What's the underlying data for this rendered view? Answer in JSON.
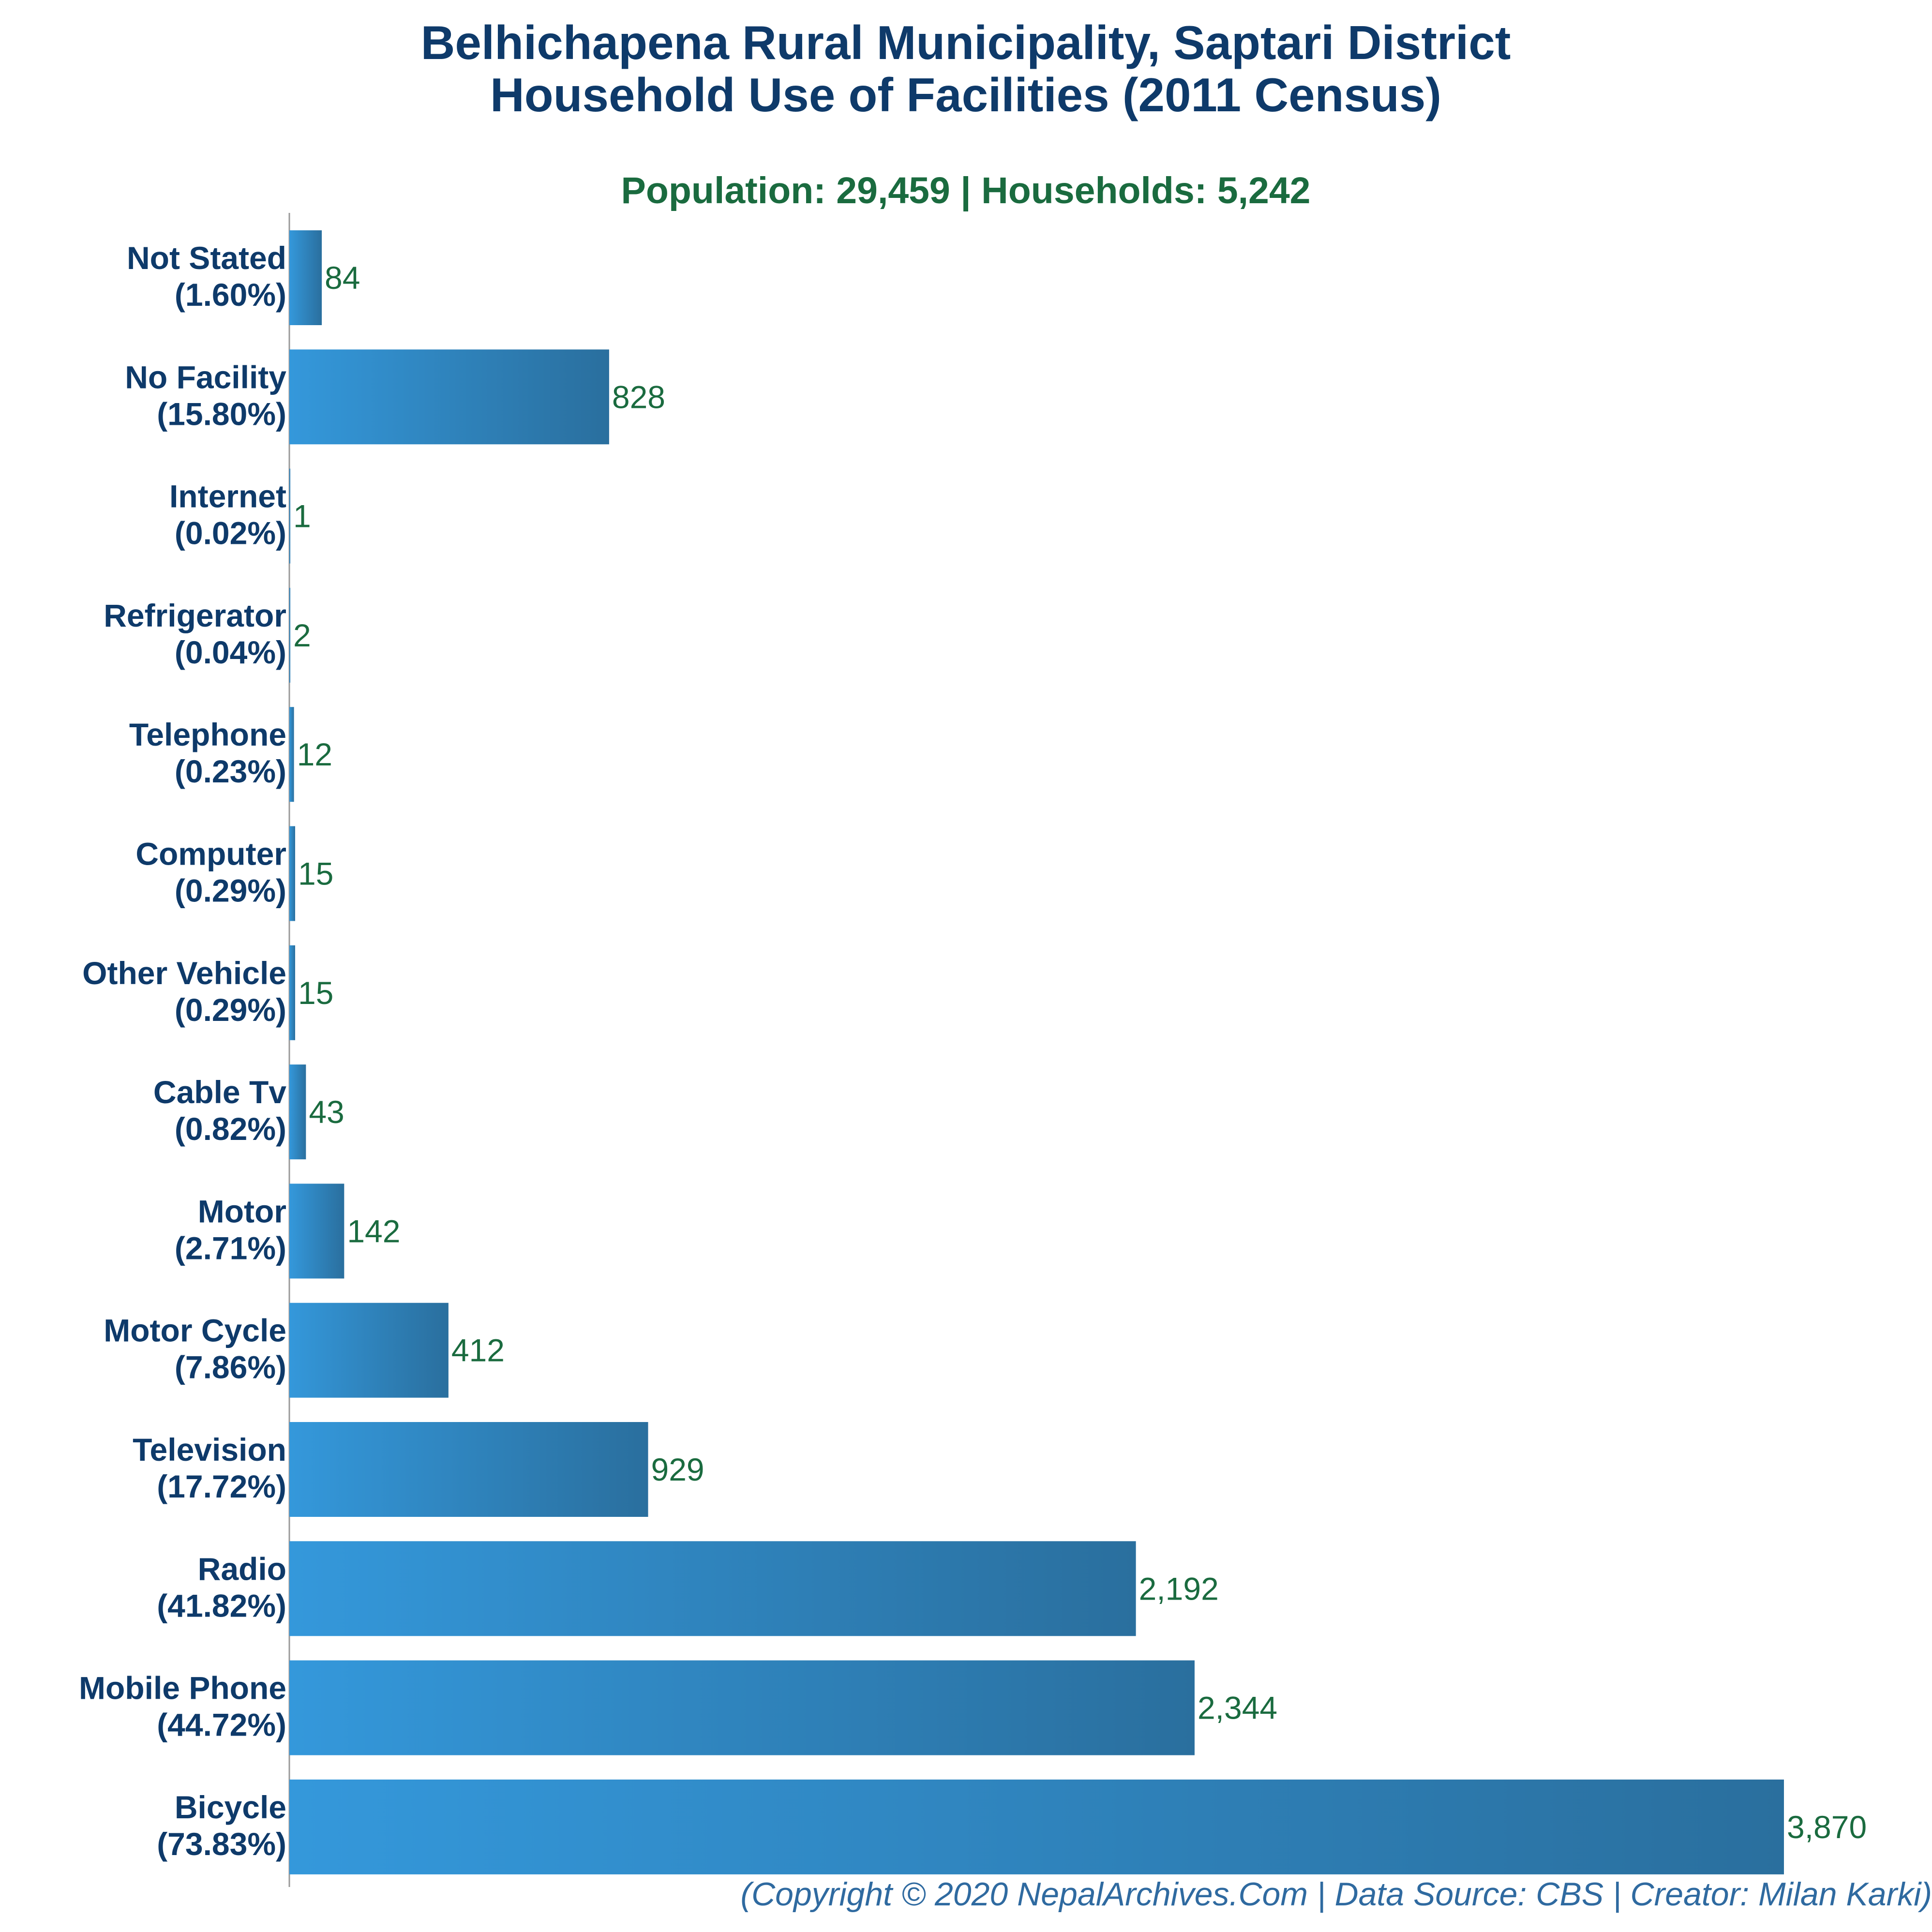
{
  "chart_data": {
    "type": "bar",
    "orientation": "horizontal",
    "title_lines": [
      "Belhichapena Rural Municipality, Saptari District",
      "Household Use of Facilities (2011 Census)"
    ],
    "subtitle": "Population: 29,459 | Households: 5,242",
    "categories": [
      "Not Stated",
      "No Facility",
      "Internet",
      "Refrigerator",
      "Telephone",
      "Computer",
      "Other Vehicle",
      "Cable Tv",
      "Motor",
      "Motor Cycle",
      "Television",
      "Radio",
      "Mobile Phone",
      "Bicycle"
    ],
    "percentages": [
      "(1.60%)",
      "(15.80%)",
      "(0.02%)",
      "(0.04%)",
      "(0.23%)",
      "(0.29%)",
      "(0.29%)",
      "(0.82%)",
      "(2.71%)",
      "(7.86%)",
      "(17.72%)",
      "(41.82%)",
      "(44.72%)",
      "(73.83%)"
    ],
    "values": [
      84,
      828,
      1,
      2,
      12,
      15,
      15,
      43,
      142,
      412,
      929,
      2192,
      2344,
      3870
    ],
    "value_labels": [
      "84",
      "828",
      "1",
      "2",
      "12",
      "15",
      "15",
      "43",
      "142",
      "412",
      "929",
      "2,192",
      "2,344",
      "3,870"
    ],
    "xlim": [
      0,
      3870
    ],
    "grid": false,
    "legend": "none",
    "colors": {
      "bar_light": "#3498db",
      "bar_dark": "#2a6f9e",
      "title": "#0e3a6a",
      "subtitle": "#1a6b3f",
      "value_label": "#1a6b3f",
      "footer": "#2f6aa0"
    }
  },
  "footer": "(Copyright © 2020 NepalArchives.Com | Data Source: CBS | Creator: Milan Karki)"
}
